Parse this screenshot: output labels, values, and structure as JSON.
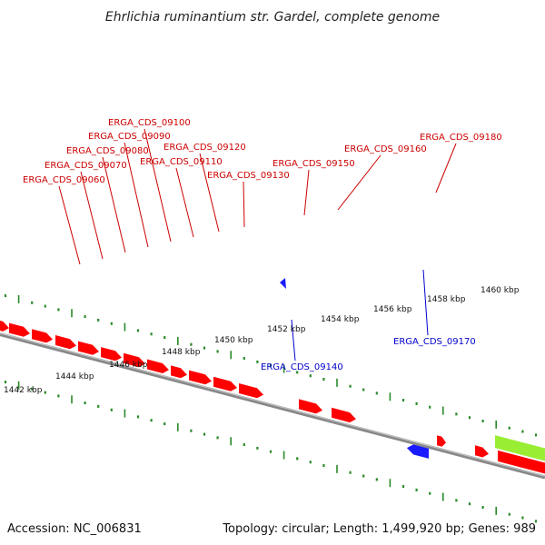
{
  "title": "Ehrlichia ruminantium str. Gardel, complete genome",
  "footer": {
    "accession": "Accession: NC_006831",
    "summary": "Topology: circular; Length: 1,499,920 bp; Genes: 989"
  },
  "colors": {
    "forward_gene": "#ff0000",
    "reverse_gene": "#1a1aff",
    "forward_label": "#cc0000",
    "reverse_label": "#0000cc",
    "ruler_tick": "#2a8a2a",
    "backbone": "#888888",
    "special_feature": "#99ee33"
  },
  "scale_labels": [
    "1442 kbp",
    "1444 kbp",
    "1446 kbp",
    "1448 kbp",
    "1450 kbp",
    "1452 kbp",
    "1454 kbp",
    "1456 kbp",
    "1458 kbp",
    "1460 kbp"
  ],
  "forward_genes": [
    {
      "name": "ERGA_CDS_09060"
    },
    {
      "name": "ERGA_CDS_09070"
    },
    {
      "name": "ERGA_CDS_09080"
    },
    {
      "name": "ERGA_CDS_09090"
    },
    {
      "name": "ERGA_CDS_09100"
    },
    {
      "name": "ERGA_CDS_09110"
    },
    {
      "name": "ERGA_CDS_09120"
    },
    {
      "name": "ERGA_CDS_09130"
    },
    {
      "name": "ERGA_CDS_09150"
    },
    {
      "name": "ERGA_CDS_09160"
    },
    {
      "name": "ERGA_CDS_09180"
    }
  ],
  "reverse_genes": [
    {
      "name": "ERGA_CDS_09140"
    },
    {
      "name": "ERGA_CDS_09170"
    }
  ]
}
